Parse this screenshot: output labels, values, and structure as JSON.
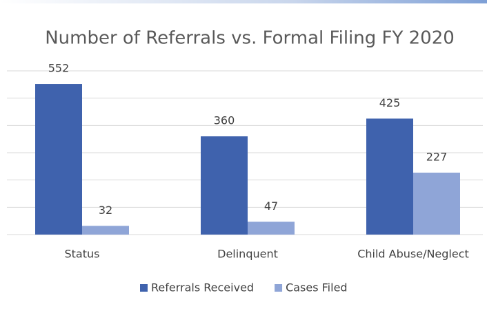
{
  "chart_data": {
    "type": "bar",
    "title": "Number of Referrals vs. Formal Filing FY 2020",
    "categories": [
      "Status",
      "Delinquent",
      "Child Abuse/Neglect"
    ],
    "series": [
      {
        "name": "Referrals Received",
        "color": "#3f62ad",
        "values": [
          552,
          360,
          425
        ]
      },
      {
        "name": "Cases Filed",
        "color": "#8fa5d7",
        "values": [
          32,
          47,
          227
        ]
      }
    ],
    "ylim": [
      0,
      600
    ],
    "yticks": [
      0,
      100,
      200,
      300,
      400,
      500,
      600
    ],
    "grid": true,
    "legend": "bottom"
  }
}
